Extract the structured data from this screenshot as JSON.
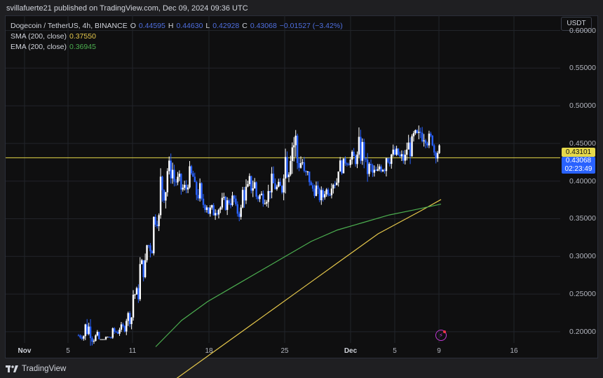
{
  "header": {
    "published": "svillafuerte21 published on TradingView.com, Dec 09, 2024 09:36 UTC"
  },
  "legend": {
    "symbol": "Dogecoin / TetherUS, 4h, BINANCE",
    "o_label": "O",
    "o_value": "0.44595",
    "h_label": "H",
    "h_value": "0.44630",
    "l_label": "L",
    "l_value": "0.42928",
    "c_label": "C",
    "c_value": "0.43068",
    "change": "−0.01527 (−3.42%)",
    "sma_label": "SMA (200, close)",
    "sma_value": "0.37550",
    "ema_label": "EMA (200, close)",
    "ema_value": "0.36945"
  },
  "axis": {
    "currency": "USDT",
    "y_ticks": [
      "0.60000",
      "0.55000",
      "0.50000",
      "0.45000",
      "0.40000",
      "0.35000",
      "0.30000",
      "0.25000",
      "0.20000"
    ],
    "x_ticks": [
      "Nov",
      "5",
      "11",
      "18",
      "25",
      "Dec",
      "5",
      "9",
      "16"
    ]
  },
  "price_tags": {
    "horizontal_line": "0.43101",
    "last_price": "0.43068",
    "countdown": "02:23:49"
  },
  "footer": {
    "brand": "TradingView"
  },
  "colors": {
    "up": "#ffffff",
    "down": "#2962ff",
    "sma": "#e6c84b",
    "ema": "#4caf50",
    "hline": "#e6d94a",
    "grid": "#22242a"
  },
  "chart_data": {
    "type": "candlestick",
    "ylim": [
      0.185,
      0.62
    ],
    "horizontal_line": 0.43101,
    "x_tick_labels": [
      "Nov",
      "5",
      "11",
      "18",
      "25",
      "Dec",
      "5",
      "9",
      "16"
    ],
    "price_path": [
      [
        0.2,
        0.19
      ],
      [
        0.22,
        0.19
      ],
      [
        0.2,
        0.185
      ],
      [
        0.19,
        0.19
      ],
      [
        0.195,
        0.19
      ],
      [
        0.205,
        0.195
      ],
      [
        0.21,
        0.2
      ],
      [
        0.23,
        0.21
      ],
      [
        0.26,
        0.24
      ],
      [
        0.3,
        0.27
      ],
      [
        0.33,
        0.3
      ],
      [
        0.36,
        0.34
      ],
      [
        0.42,
        0.37
      ],
      [
        0.43,
        0.4
      ],
      [
        0.41,
        0.39
      ],
      [
        0.4,
        0.38
      ],
      [
        0.42,
        0.39
      ],
      [
        0.4,
        0.37
      ],
      [
        0.38,
        0.36
      ],
      [
        0.37,
        0.35
      ],
      [
        0.375,
        0.355
      ],
      [
        0.38,
        0.36
      ],
      [
        0.385,
        0.365
      ],
      [
        0.37,
        0.35
      ],
      [
        0.4,
        0.37
      ],
      [
        0.41,
        0.38
      ],
      [
        0.39,
        0.37
      ],
      [
        0.395,
        0.37
      ],
      [
        0.41,
        0.38
      ],
      [
        0.4,
        0.38
      ],
      [
        0.46,
        0.4
      ],
      [
        0.48,
        0.42
      ],
      [
        0.44,
        0.41
      ],
      [
        0.42,
        0.39
      ],
      [
        0.4,
        0.38
      ],
      [
        0.39,
        0.37
      ],
      [
        0.395,
        0.38
      ],
      [
        0.41,
        0.39
      ],
      [
        0.43,
        0.41
      ],
      [
        0.435,
        0.42
      ],
      [
        0.44,
        0.42
      ],
      [
        0.46,
        0.42
      ],
      [
        0.43,
        0.4
      ],
      [
        0.42,
        0.4
      ],
      [
        0.43,
        0.41
      ],
      [
        0.45,
        0.42
      ],
      [
        0.445,
        0.425
      ],
      [
        0.44,
        0.42
      ],
      [
        0.46,
        0.43
      ],
      [
        0.47,
        0.44
      ],
      [
        0.48,
        0.45
      ],
      [
        0.465,
        0.445
      ],
      [
        0.45,
        0.43
      ]
    ],
    "sma": [
      0.13,
      0.15,
      0.17,
      0.19,
      0.21,
      0.23,
      0.25,
      0.27,
      0.29,
      0.31,
      0.33,
      0.345,
      0.36,
      0.3755
    ],
    "ema": [
      0.18,
      0.215,
      0.24,
      0.26,
      0.28,
      0.3,
      0.32,
      0.335,
      0.345,
      0.355,
      0.362,
      0.36945
    ]
  }
}
